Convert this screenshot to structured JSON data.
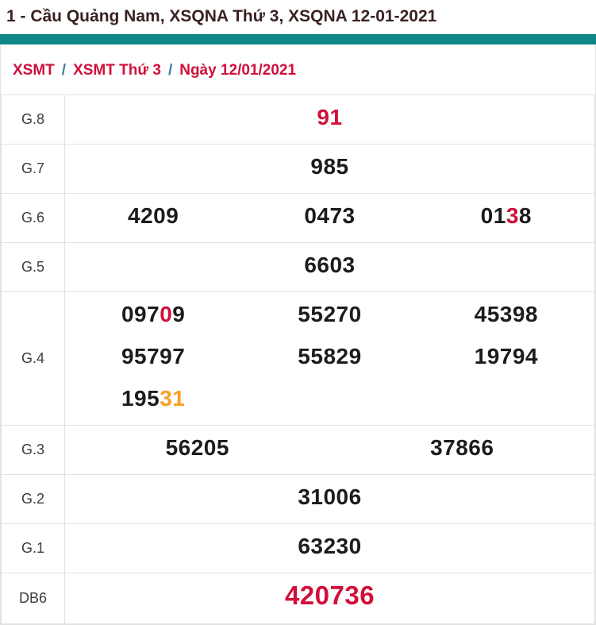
{
  "title": "1 - Cầu Quảng Nam, XSQNA Thứ 3, XSQNA 12-01-2021",
  "colors": {
    "accent_teal": "#0e8789",
    "highlight_red": "#d0103a",
    "highlight_orange": "#f9a125",
    "number_ink": "#1c1c1c"
  },
  "breadcrumb": {
    "separator": "/",
    "items": [
      {
        "label": "XSMT"
      },
      {
        "label": "XSMT Thứ 3"
      },
      {
        "label": "Ngày 12/01/2021"
      }
    ]
  },
  "table": {
    "rows": [
      {
        "label": "G.8",
        "large": false,
        "lines": [
          [
            [
              {
                "t": "91",
                "c": "red"
              }
            ]
          ]
        ]
      },
      {
        "label": "G.7",
        "large": false,
        "lines": [
          [
            [
              {
                "t": "985"
              }
            ]
          ]
        ]
      },
      {
        "label": "G.6",
        "large": false,
        "lines": [
          [
            [
              {
                "t": "4209"
              }
            ],
            [
              {
                "t": "0473"
              }
            ],
            [
              {
                "t": "01"
              },
              {
                "t": "3",
                "c": "red"
              },
              {
                "t": "8"
              }
            ]
          ]
        ]
      },
      {
        "label": "G.5",
        "large": false,
        "lines": [
          [
            [
              {
                "t": "6603"
              }
            ]
          ]
        ]
      },
      {
        "label": "G.4",
        "large": false,
        "lines": [
          [
            [
              {
                "t": "097"
              },
              {
                "t": "0",
                "c": "red"
              },
              {
                "t": "9"
              }
            ],
            [
              {
                "t": "55270"
              }
            ],
            [
              {
                "t": "45398"
              }
            ]
          ],
          [
            [
              {
                "t": "95797"
              }
            ],
            [
              {
                "t": "55829"
              }
            ],
            [
              {
                "t": "19794"
              }
            ]
          ],
          [
            [
              {
                "t": "195"
              },
              {
                "t": "31",
                "c": "orange"
              }
            ],
            [],
            []
          ]
        ]
      },
      {
        "label": "G.3",
        "large": false,
        "lines": [
          [
            [
              {
                "t": "56205"
              }
            ],
            [
              {
                "t": "37866"
              }
            ]
          ]
        ]
      },
      {
        "label": "G.2",
        "large": false,
        "lines": [
          [
            [
              {
                "t": "31006"
              }
            ]
          ]
        ]
      },
      {
        "label": "G.1",
        "large": false,
        "lines": [
          [
            [
              {
                "t": "63230"
              }
            ]
          ]
        ]
      },
      {
        "label": "DB6",
        "large": true,
        "lines": [
          [
            [
              {
                "t": "420736",
                "c": "red"
              }
            ]
          ]
        ]
      }
    ]
  }
}
